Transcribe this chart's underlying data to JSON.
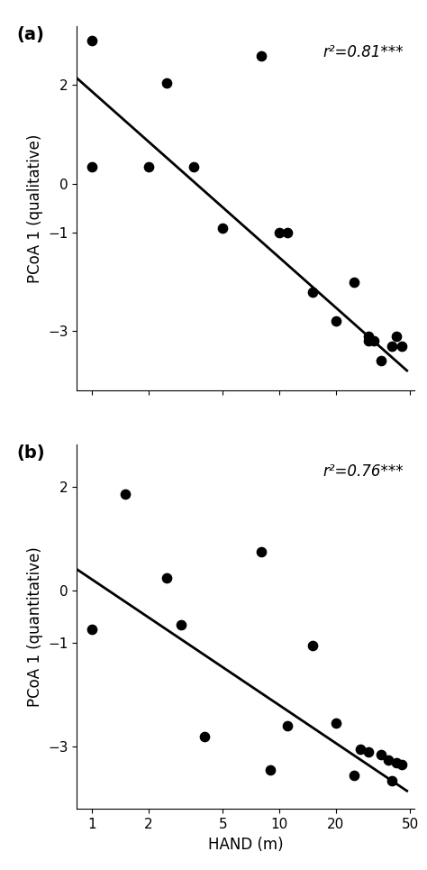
{
  "panel_a": {
    "label": "(a)",
    "x": [
      1.0,
      1.0,
      2.0,
      2.5,
      3.5,
      5.0,
      8.0,
      10.0,
      11.0,
      15.0,
      20.0,
      25.0,
      30.0,
      30.0,
      32.0,
      35.0,
      40.0,
      42.0,
      45.0
    ],
    "y": [
      0.35,
      2.9,
      0.35,
      2.05,
      0.35,
      -0.9,
      2.6,
      -1.0,
      -1.0,
      -2.2,
      -2.8,
      -2.0,
      -3.1,
      -3.2,
      -3.2,
      -3.6,
      -3.3,
      -3.1,
      -3.3
    ],
    "line_x": [
      0.8,
      48.0
    ],
    "line_y": [
      2.2,
      -3.8
    ],
    "ylabel": "PCoA 1 (qualitative)",
    "yticks": [
      2,
      0,
      -1,
      -3
    ],
    "ylim": [
      -4.2,
      3.2
    ],
    "annotation": "r²=0.81***"
  },
  "panel_b": {
    "label": "(b)",
    "x": [
      1.0,
      1.5,
      2.5,
      3.0,
      4.0,
      8.0,
      9.0,
      11.0,
      15.0,
      20.0,
      25.0,
      27.0,
      30.0,
      35.0,
      38.0,
      40.0,
      42.0,
      45.0
    ],
    "y": [
      -0.75,
      1.85,
      0.25,
      -0.65,
      -2.8,
      0.75,
      -3.45,
      -2.6,
      -1.05,
      -2.55,
      -3.55,
      -3.05,
      -3.1,
      -3.15,
      -3.25,
      -3.65,
      -3.3,
      -3.35
    ],
    "line_x": [
      0.8,
      48.0
    ],
    "line_y": [
      0.45,
      -3.85
    ],
    "ylabel": "PCoA 1 (quantitative)",
    "yticks": [
      2,
      0,
      -1,
      -3
    ],
    "ylim": [
      -4.2,
      2.8
    ],
    "annotation": "r²=0.76***"
  },
  "xlabel": "HAND (m)",
  "xticks": [
    1,
    2,
    5,
    10,
    20,
    50
  ],
  "xlim_log": [
    -0.08,
    1.72
  ],
  "background_color": "#ffffff",
  "dot_color": "#000000",
  "line_color": "#000000",
  "dot_size": 55,
  "annotation_fontsize": 12,
  "label_fontsize": 14,
  "axis_fontsize": 12,
  "tick_fontsize": 11
}
